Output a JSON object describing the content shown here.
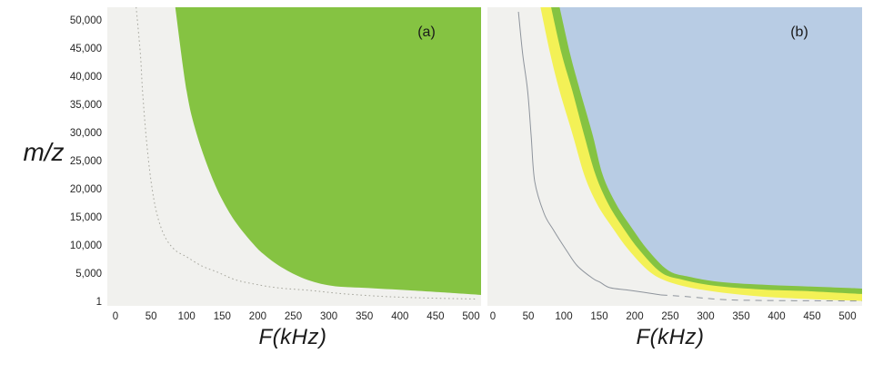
{
  "figure": {
    "x_axis_title": "F(kHz)",
    "y_axis_title": "m/z"
  },
  "colors": {
    "plot_bg": "#f1f1ee",
    "green": "#85c342",
    "yellow": "#f3f156",
    "blue": "#b8cce4",
    "solid_curve": "#8e949c",
    "dotted_curve": "#a5a59c"
  },
  "chart_data": [
    {
      "type": "area",
      "panel": "a",
      "panel_label": "(a)",
      "xlabel": "F(kHz)",
      "ylabel": "m/z",
      "xlim": [
        0,
        515
      ],
      "ylim": [
        1,
        50000
      ],
      "grid": false,
      "legend": "none",
      "x_ticks": [
        0,
        50,
        100,
        150,
        200,
        250,
        300,
        350,
        400,
        450,
        500
      ],
      "x_tick_labels": [
        "0",
        "50",
        "100",
        "150",
        "200",
        "250",
        "300",
        "350",
        "400",
        "450",
        "500"
      ],
      "y_ticks": [
        50000,
        45000,
        40000,
        35000,
        30000,
        25000,
        20000,
        15000,
        10000,
        5000,
        1
      ],
      "y_tick_labels": [
        "50,000",
        "45,000",
        "40,000",
        "35,000",
        "30,000",
        "25,000",
        "20,000",
        "15,000",
        "10,000",
        "5,000",
        "1"
      ],
      "regions": [
        {
          "name": "green-region",
          "fill": "green",
          "note": "accessible region to upper-right of hyperbolic boundary, m/z ~ 3.7e8/F^2",
          "boundary_points": [
            [
              84,
              52300
            ],
            [
              100,
              37400
            ],
            [
              115,
              29400
            ],
            [
              138,
              21300
            ],
            [
              157,
              16450
            ],
            [
              174,
              13200
            ],
            [
              193,
              10300
            ],
            [
              208,
              8400
            ],
            [
              234,
              6000
            ],
            [
              266,
              4000
            ],
            [
              304,
              2750
            ],
            [
              349,
              2400
            ],
            [
              413,
              1950
            ],
            [
              477,
              1450
            ],
            [
              514,
              1130
            ]
          ]
        }
      ],
      "curves": [
        {
          "name": "dotted-boundary-curve",
          "style": "dotted",
          "color": "dotted_curve",
          "points": [
            [
              29,
              52300
            ],
            [
              35,
              43900
            ],
            [
              38,
              37400
            ],
            [
              43,
              29400
            ],
            [
              50,
              21300
            ],
            [
              58,
              15650
            ],
            [
              69,
              11600
            ],
            [
              83,
              9200
            ],
            [
              100,
              7900
            ],
            [
              121,
              6300
            ],
            [
              144,
              5150
            ],
            [
              168,
              3850
            ],
            [
              196,
              3050
            ],
            [
              228,
              2400
            ],
            [
              272,
              1950
            ],
            [
              324,
              1300
            ],
            [
              387,
              800
            ],
            [
              451,
              550
            ],
            [
              509,
              400
            ]
          ]
        }
      ]
    },
    {
      "type": "area",
      "panel": "b",
      "panel_label": "(b)",
      "xlabel": "F(kHz)",
      "ylabel": "m/z",
      "xlim": [
        0,
        520
      ],
      "ylim": [
        1,
        50000
      ],
      "grid": false,
      "legend": "none",
      "x_ticks": [
        0,
        50,
        100,
        150,
        200,
        250,
        300,
        350,
        400,
        450,
        500
      ],
      "x_tick_labels": [
        "0",
        "50",
        "100",
        "150",
        "200",
        "250",
        "300",
        "350",
        "400",
        "450",
        "500"
      ],
      "y_ticks": null,
      "y_tick_labels": null,
      "regions": [
        {
          "name": "yellow-band-region",
          "fill": "yellow",
          "note": "outermost band left of green stripe",
          "boundary_points": [
            [
              67,
              52300
            ],
            [
              81,
              43900
            ],
            [
              94,
              37400
            ],
            [
              113,
              29400
            ],
            [
              129,
              22400
            ],
            [
              147,
              17250
            ],
            [
              168,
              13200
            ],
            [
              191,
              9200
            ],
            [
              222,
              5150
            ],
            [
              253,
              3250
            ],
            [
              300,
              1950
            ],
            [
              367,
              970
            ],
            [
              431,
              480
            ],
            [
              520,
              60
            ]
          ]
        },
        {
          "name": "green-stripe-region",
          "fill": "green",
          "note": "thin green stripe between yellow band and blue region",
          "boundary_points": [
            [
              82,
              52300
            ],
            [
              97,
              43900
            ],
            [
              112,
              37400
            ],
            [
              129,
              29400
            ],
            [
              145,
              22400
            ],
            [
              163,
              17250
            ],
            [
              183,
              13200
            ],
            [
              206,
              9200
            ],
            [
              237,
              5150
            ],
            [
              267,
              3850
            ],
            [
              313,
              2750
            ],
            [
              379,
              2100
            ],
            [
              444,
              1800
            ],
            [
              520,
              1300
            ]
          ]
        },
        {
          "name": "blue-region",
          "fill": "blue",
          "note": "large accessible region, m/z ~ const/F^2 boundary",
          "boundary_points": [
            [
              94,
              52300
            ],
            [
              109,
              43900
            ],
            [
              123,
              37400
            ],
            [
              141,
              29400
            ],
            [
              155,
              22400
            ],
            [
              174,
              17250
            ],
            [
              195,
              13200
            ],
            [
              218,
              9200
            ],
            [
              247,
              5500
            ],
            [
              277,
              4350
            ],
            [
              323,
              3400
            ],
            [
              388,
              2900
            ],
            [
              453,
              2600
            ],
            [
              520,
              2260
            ]
          ]
        }
      ],
      "curves": [
        {
          "name": "solid-boundary-curve",
          "style": "solid",
          "color": "solid_curve",
          "points": [
            [
              36,
              51450
            ],
            [
              42,
              43900
            ],
            [
              49,
              37400
            ],
            [
              54,
              29400
            ],
            [
              59,
              21300
            ],
            [
              72,
              15650
            ],
            [
              85,
              12750
            ],
            [
              103,
              9200
            ],
            [
              119,
              6300
            ],
            [
              141,
              4050
            ],
            [
              151,
              3400
            ],
            [
              165,
              2420
            ],
            [
              194,
              1940
            ],
            [
              237,
              1130
            ]
          ]
        },
        {
          "name": "dashed-boundary-tail",
          "style": "dashed",
          "color": "solid_curve",
          "points": [
            [
              237,
              1130
            ],
            [
              276,
              810
            ],
            [
              322,
              320
            ],
            [
              373,
              160
            ],
            [
              476,
              80
            ],
            [
              523,
              60
            ]
          ]
        }
      ]
    }
  ]
}
